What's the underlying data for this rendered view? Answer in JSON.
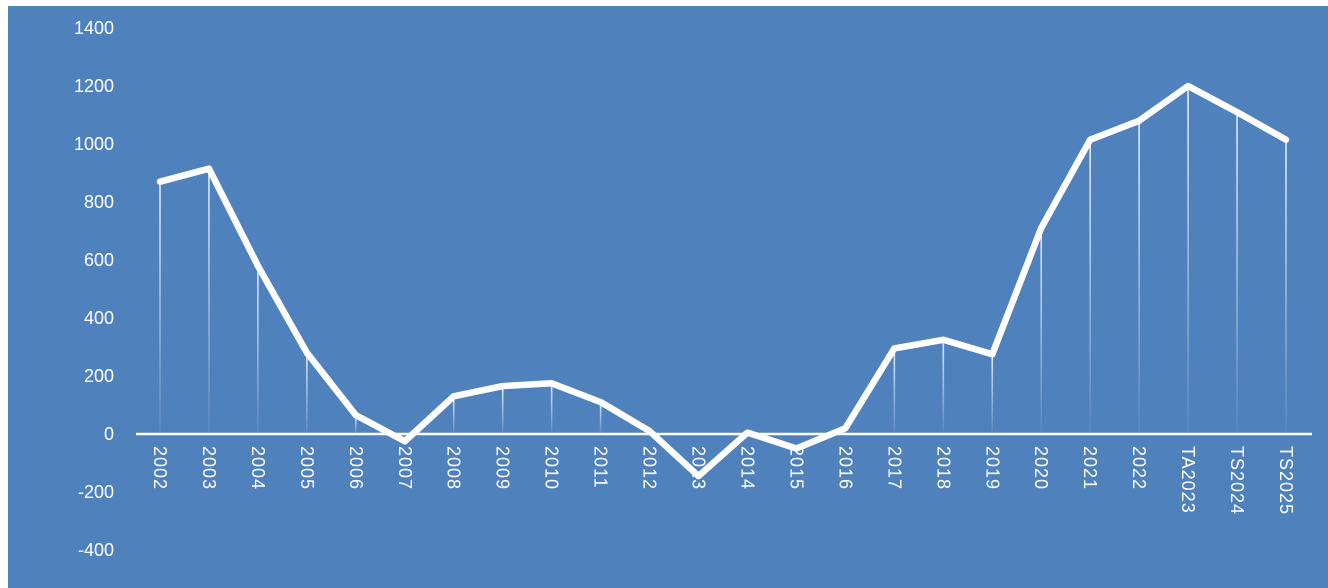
{
  "chart_data": {
    "type": "line",
    "categories": [
      "2002",
      "2003",
      "2004",
      "2005",
      "2006",
      "2007",
      "2008",
      "2009",
      "2010",
      "2011",
      "2012",
      "2013",
      "2014",
      "2015",
      "2016",
      "2017",
      "2018",
      "2019",
      "2020",
      "2021",
      "2022",
      "TA2023",
      "TS2024",
      "TS2025"
    ],
    "values": [
      870,
      915,
      580,
      280,
      65,
      -25,
      130,
      165,
      175,
      110,
      10,
      -145,
      5,
      -50,
      20,
      295,
      325,
      275,
      710,
      1015,
      1080,
      1200,
      1110,
      1015
    ],
    "yticks": [
      "1400",
      "1200",
      "1000",
      "800",
      "600",
      "400",
      "200",
      "0",
      "-200",
      "-400"
    ],
    "ylim": [
      -400,
      1400
    ],
    "grid": false,
    "legend": "none",
    "drop_lines": true
  },
  "colors": {
    "background": "#4f81bd",
    "line": "#ffffff",
    "text": "#ffffff"
  }
}
